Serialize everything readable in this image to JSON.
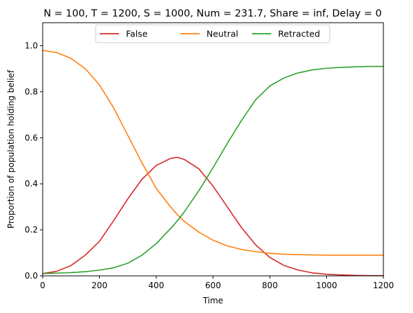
{
  "chart_data": {
    "type": "line",
    "title": "N = 100, T = 1200, S = 1000, Num = 231.7, Share = inf, Delay = 0",
    "xlabel": "Time",
    "ylabel": "Proportion of population holding belief",
    "xlim": [
      0,
      1200
    ],
    "ylim": [
      0,
      1.1
    ],
    "xticks": [
      0,
      200,
      400,
      600,
      800,
      1000,
      1200
    ],
    "yticks": [
      0.0,
      0.2,
      0.4,
      0.6,
      0.8,
      1.0
    ],
    "xtick_labels": [
      "0",
      "200",
      "400",
      "600",
      "800",
      "1000",
      "1200"
    ],
    "ytick_labels": [
      "0.0",
      "0.2",
      "0.4",
      "0.6",
      "0.8",
      "1.0"
    ],
    "grid": false,
    "legend": "upper-center",
    "x": [
      0,
      50,
      100,
      150,
      200,
      250,
      300,
      350,
      400,
      450,
      475,
      500,
      550,
      600,
      650,
      700,
      750,
      800,
      850,
      900,
      950,
      1000,
      1050,
      1100,
      1150,
      1200
    ],
    "series": [
      {
        "name": "False",
        "color": "#d62728",
        "values": [
          0.01,
          0.02,
          0.045,
          0.09,
          0.15,
          0.24,
          0.335,
          0.42,
          0.48,
          0.51,
          0.515,
          0.505,
          0.465,
          0.39,
          0.3,
          0.21,
          0.135,
          0.08,
          0.045,
          0.025,
          0.013,
          0.007,
          0.004,
          0.002,
          0.001,
          0.001
        ]
      },
      {
        "name": "Neutral",
        "color": "#ff7f0e",
        "values": [
          0.98,
          0.97,
          0.945,
          0.9,
          0.83,
          0.73,
          0.61,
          0.49,
          0.38,
          0.3,
          0.265,
          0.235,
          0.19,
          0.155,
          0.13,
          0.115,
          0.105,
          0.098,
          0.094,
          0.092,
          0.091,
          0.09,
          0.09,
          0.09,
          0.09,
          0.09
        ]
      },
      {
        "name": "Retracted",
        "color": "#2ca02c",
        "values": [
          0.01,
          0.012,
          0.014,
          0.018,
          0.025,
          0.035,
          0.055,
          0.09,
          0.14,
          0.205,
          0.24,
          0.28,
          0.37,
          0.47,
          0.575,
          0.675,
          0.765,
          0.825,
          0.86,
          0.882,
          0.895,
          0.902,
          0.906,
          0.908,
          0.91,
          0.91
        ]
      }
    ]
  }
}
